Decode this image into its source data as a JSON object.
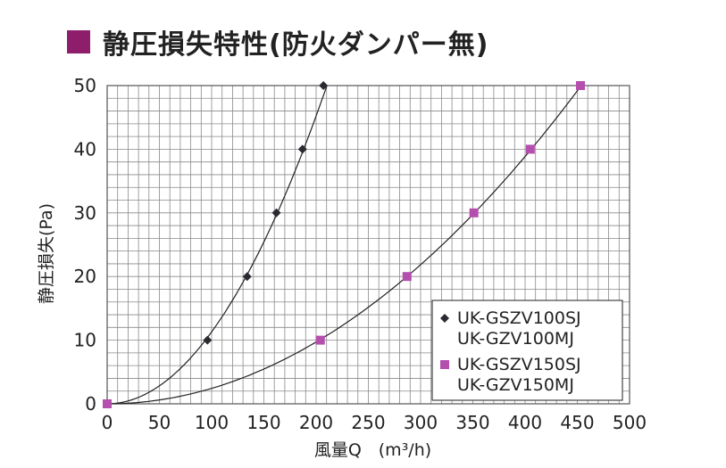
{
  "title": "静圧損失特性(防火ダンパー無)",
  "colors": {
    "title_marker": "#8e1e6b",
    "series_a": "#2a2a30",
    "series_b": "#b44fae",
    "grid": "#8a8a8a",
    "curve": "#222222"
  },
  "chart_data": {
    "type": "line",
    "xlabel": "風量Q　(m³/h)",
    "ylabel": "静圧損失(Pa)",
    "xlim": [
      0,
      500
    ],
    "ylim": [
      0,
      50
    ],
    "xticks": [
      0,
      50,
      100,
      150,
      200,
      250,
      300,
      350,
      400,
      450,
      500
    ],
    "yticks": [
      0,
      10,
      20,
      30,
      40,
      50
    ],
    "grid": true,
    "legend_position": "bottom-right",
    "series": [
      {
        "name": "UK-GSZV100SJ / UK-GZV100MJ",
        "legend_lines": [
          "UK-GSZV100SJ",
          "UK-GZV100MJ"
        ],
        "marker": "diamond",
        "points": [
          [
            96,
            10
          ],
          [
            134,
            20
          ],
          [
            162,
            30
          ],
          [
            187,
            40
          ],
          [
            207,
            50
          ]
        ]
      },
      {
        "name": "UK-GSZV150SJ / UK-GZV150MJ",
        "legend_lines": [
          "UK-GSZV150SJ",
          "UK-GZV150MJ"
        ],
        "marker": "square",
        "points": [
          [
            0,
            0
          ],
          [
            204,
            10
          ],
          [
            287,
            20
          ],
          [
            351,
            30
          ],
          [
            405,
            40
          ],
          [
            453,
            50
          ]
        ]
      }
    ]
  }
}
